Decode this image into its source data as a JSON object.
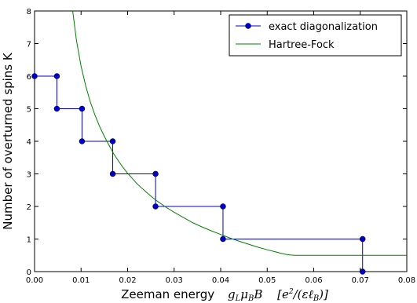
{
  "chart_data": {
    "type": "line",
    "xlabel_text": "Zeeman energy",
    "xlabel_math": "g_L μ_B B   [e²/(εℓ_B)]",
    "xlabel_math_parts": {
      "g": "g",
      "L": "L",
      "mu": "μ",
      "B_sub": "B",
      "B": "B",
      "frac_num": "[e",
      "sq": "2",
      "frac_mid": "/(εℓ",
      "frac_sub": "B",
      "frac_end": ")]"
    },
    "ylabel": "Number of overturned spins K",
    "xlim": [
      0.0,
      0.08
    ],
    "ylim": [
      0,
      8
    ],
    "x_ticks": [
      "0.00",
      "0.01",
      "0.02",
      "0.03",
      "0.04",
      "0.05",
      "0.06",
      "0.07",
      "0.08"
    ],
    "y_ticks": [
      "0",
      "1",
      "2",
      "3",
      "4",
      "5",
      "6",
      "7",
      "8"
    ],
    "grid": false,
    "legend_position": "top-right",
    "series": [
      {
        "name": "exact diagonalization",
        "color": "#0000cc",
        "marker": "circle",
        "x": [
          0.0,
          0.0048,
          0.0048,
          0.0102,
          0.0102,
          0.0168,
          0.0168,
          0.026,
          0.026,
          0.0405,
          0.0405,
          0.0705,
          0.0705
        ],
        "y": [
          6,
          6,
          5,
          5,
          4,
          4,
          3,
          3,
          2,
          2,
          1,
          1,
          0
        ]
      },
      {
        "name": "Hartree-Fock",
        "color": "#008000",
        "marker": "none",
        "x": [
          0.0082,
          0.009,
          0.01,
          0.011,
          0.012,
          0.013,
          0.014,
          0.015,
          0.016,
          0.017,
          0.018,
          0.019,
          0.02,
          0.022,
          0.024,
          0.026,
          0.028,
          0.03,
          0.032,
          0.034,
          0.036,
          0.038,
          0.04,
          0.042,
          0.044,
          0.046,
          0.048,
          0.05,
          0.052,
          0.053,
          0.054,
          0.055,
          0.056,
          0.06,
          0.065,
          0.07,
          0.075,
          0.08
        ],
        "y": [
          8.0,
          7.1,
          6.3,
          5.7,
          5.2,
          4.8,
          4.45,
          4.15,
          3.88,
          3.62,
          3.4,
          3.2,
          3.02,
          2.7,
          2.44,
          2.2,
          2.0,
          1.82,
          1.66,
          1.5,
          1.37,
          1.25,
          1.14,
          1.03,
          0.93,
          0.84,
          0.75,
          0.67,
          0.6,
          0.56,
          0.53,
          0.51,
          0.5,
          0.5,
          0.5,
          0.5,
          0.5,
          0.5
        ]
      }
    ]
  }
}
